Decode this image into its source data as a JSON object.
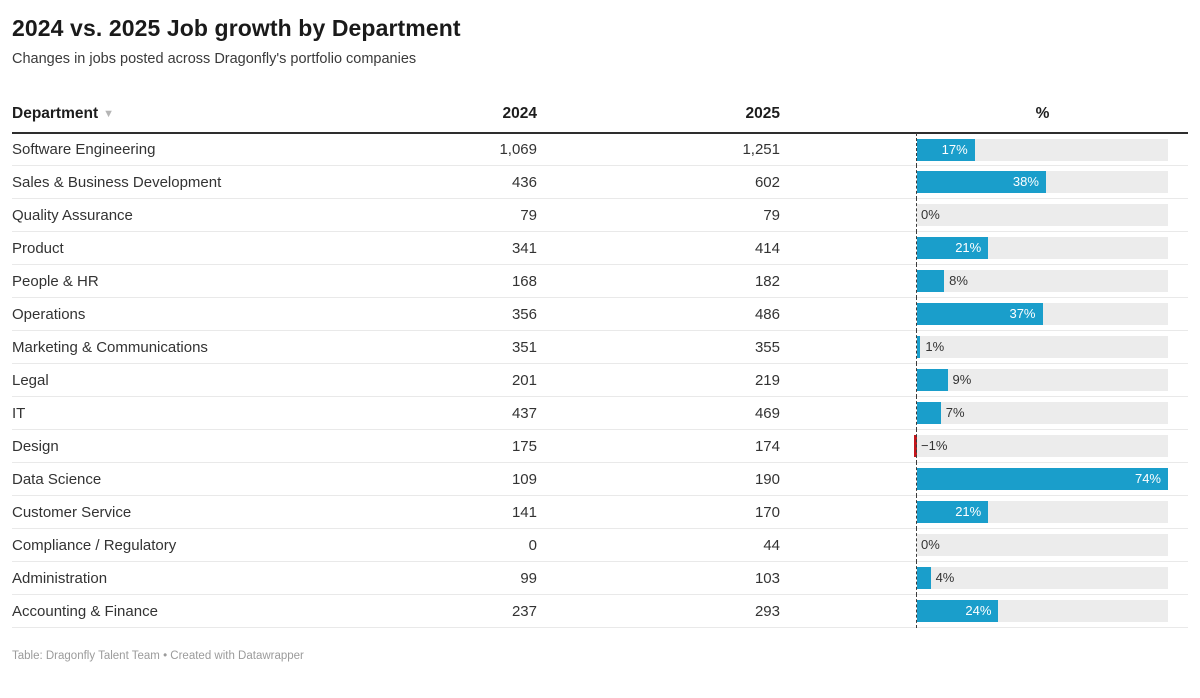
{
  "page": {
    "footer": "Table: Dragonfly Talent Team • Created with Datawrapper"
  },
  "table": {
    "columns": {
      "department": "Department",
      "y2024": "2024",
      "y2025": "2025",
      "pct": "%"
    },
    "sort_icon": "▼"
  },
  "colors": {
    "bar_positive": "#1a9ecb",
    "bar_negative": "#c4161c",
    "bar_track": "#ececec",
    "label_inside": "#ffffff",
    "label_outside": "#333333"
  },
  "chart_data": {
    "type": "table",
    "title": "2024 vs. 2025 Job growth by Department",
    "subtitle": "Changes in jobs posted across Dragonfly's portfolio companies",
    "columns": [
      "Department",
      "2024",
      "2025",
      "%"
    ],
    "bar_axis": {
      "baseline": 0,
      "max_pct": 74,
      "bar_column": "%",
      "bar_type": "bar"
    },
    "rows": [
      {
        "department": "Software Engineering",
        "jobs_2024": 1069,
        "jobs_2025": 1251,
        "growth_pct": 17,
        "display": {
          "y2024": "1,069",
          "y2025": "1,251",
          "pct": "17%"
        }
      },
      {
        "department": "Sales & Business Development",
        "jobs_2024": 436,
        "jobs_2025": 602,
        "growth_pct": 38,
        "display": {
          "y2024": "436",
          "y2025": "602",
          "pct": "38%"
        }
      },
      {
        "department": "Quality Assurance",
        "jobs_2024": 79,
        "jobs_2025": 79,
        "growth_pct": 0,
        "display": {
          "y2024": "79",
          "y2025": "79",
          "pct": "0%"
        }
      },
      {
        "department": "Product",
        "jobs_2024": 341,
        "jobs_2025": 414,
        "growth_pct": 21,
        "display": {
          "y2024": "341",
          "y2025": "414",
          "pct": "21%"
        }
      },
      {
        "department": "People & HR",
        "jobs_2024": 168,
        "jobs_2025": 182,
        "growth_pct": 8,
        "display": {
          "y2024": "168",
          "y2025": "182",
          "pct": "8%"
        }
      },
      {
        "department": "Operations",
        "jobs_2024": 356,
        "jobs_2025": 486,
        "growth_pct": 37,
        "display": {
          "y2024": "356",
          "y2025": "486",
          "pct": "37%"
        }
      },
      {
        "department": "Marketing & Communications",
        "jobs_2024": 351,
        "jobs_2025": 355,
        "growth_pct": 1,
        "display": {
          "y2024": "351",
          "y2025": "355",
          "pct": "1%"
        }
      },
      {
        "department": "Legal",
        "jobs_2024": 201,
        "jobs_2025": 219,
        "growth_pct": 9,
        "display": {
          "y2024": "201",
          "y2025": "219",
          "pct": "9%"
        }
      },
      {
        "department": "IT",
        "jobs_2024": 437,
        "jobs_2025": 469,
        "growth_pct": 7,
        "display": {
          "y2024": "437",
          "y2025": "469",
          "pct": "7%"
        }
      },
      {
        "department": "Design",
        "jobs_2024": 175,
        "jobs_2025": 174,
        "growth_pct": -1,
        "display": {
          "y2024": "175",
          "y2025": "174",
          "pct": "−1%"
        }
      },
      {
        "department": "Data Science",
        "jobs_2024": 109,
        "jobs_2025": 190,
        "growth_pct": 74,
        "display": {
          "y2024": "109",
          "y2025": "190",
          "pct": "74%"
        }
      },
      {
        "department": "Customer Service",
        "jobs_2024": 141,
        "jobs_2025": 170,
        "growth_pct": 21,
        "display": {
          "y2024": "141",
          "y2025": "170",
          "pct": "21%"
        }
      },
      {
        "department": "Compliance / Regulatory",
        "jobs_2024": 0,
        "jobs_2025": 44,
        "growth_pct": 0,
        "display": {
          "y2024": "0",
          "y2025": "44",
          "pct": "0%"
        }
      },
      {
        "department": "Administration",
        "jobs_2024": 99,
        "jobs_2025": 103,
        "growth_pct": 4,
        "display": {
          "y2024": "99",
          "y2025": "103",
          "pct": "4%"
        }
      },
      {
        "department": "Accounting & Finance",
        "jobs_2024": 237,
        "jobs_2025": 293,
        "growth_pct": 24,
        "display": {
          "y2024": "237",
          "y2025": "293",
          "pct": "24%"
        }
      }
    ]
  }
}
